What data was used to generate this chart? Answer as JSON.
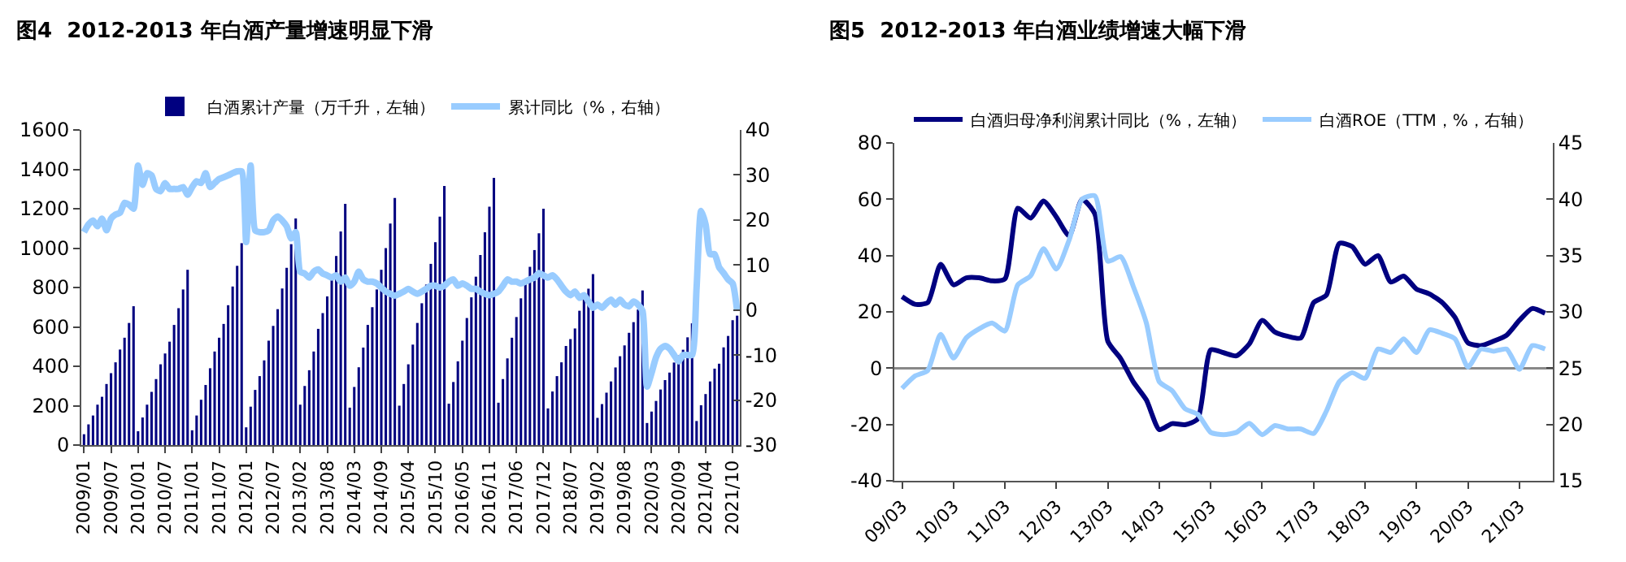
{
  "chart_data": [
    {
      "type": "bar",
      "title": "图4  2012-2013 年白酒产量增速明显下滑",
      "legend": "top",
      "ylim": [
        0,
        1600
      ],
      "yticks": [
        0,
        200,
        400,
        600,
        800,
        1000,
        1200,
        1400,
        1600
      ],
      "y2lim": [
        -30,
        40
      ],
      "y2ticks": [
        -30,
        -20,
        -10,
        0,
        10,
        20,
        30,
        40
      ],
      "categories": [
        "2009/01",
        null,
        null,
        null,
        null,
        null,
        "2009/07",
        null,
        null,
        null,
        null,
        null,
        "2010/01",
        null,
        null,
        null,
        null,
        null,
        "2010/07",
        null,
        null,
        null,
        null,
        null,
        "2011/01",
        null,
        null,
        null,
        null,
        null,
        "2011/07",
        null,
        null,
        null,
        null,
        null,
        "2012/01",
        null,
        null,
        null,
        null,
        null,
        "2012/07",
        null,
        null,
        null,
        null,
        null,
        "2013/02",
        null,
        null,
        null,
        null,
        null,
        "2013/08",
        null,
        null,
        null,
        null,
        null,
        "2014/03",
        null,
        null,
        null,
        null,
        null,
        "2014/09",
        null,
        null,
        null,
        null,
        null,
        "2015/04",
        null,
        null,
        null,
        null,
        null,
        "2015/10",
        null,
        null,
        null,
        null,
        null,
        "2016/05",
        null,
        null,
        null,
        null,
        null,
        "2016/11",
        null,
        null,
        null,
        null,
        null,
        "2017/06",
        null,
        null,
        null,
        null,
        null,
        "2017/12",
        null,
        null,
        null,
        null,
        null,
        "2018/07",
        null,
        null,
        null,
        null,
        null,
        "2019/02",
        null,
        null,
        null,
        null,
        null,
        "2019/08",
        null,
        null,
        null,
        null,
        null,
        "2020/03",
        null,
        null,
        null,
        null,
        null,
        "2020/09",
        null,
        null,
        null,
        null,
        null,
        "2021/04",
        null,
        null,
        null,
        null,
        null,
        "2021/10",
        null
      ],
      "series": [
        {
          "name": "白酒累计产量（万千升，左轴）",
          "color": "#000080",
          "values": [
            55,
            105,
            150,
            205,
            245,
            310,
            365,
            420,
            485,
            545,
            620,
            705,
            70,
            140,
            205,
            270,
            335,
            410,
            465,
            525,
            610,
            695,
            790,
            890,
            75,
            150,
            230,
            305,
            390,
            475,
            545,
            615,
            710,
            805,
            910,
            1025,
            90,
            195,
            280,
            350,
            430,
            530,
            605,
            690,
            795,
            900,
            1020,
            1150,
            205,
            300,
            380,
            475,
            590,
            670,
            755,
            855,
            960,
            1085,
            1225,
            190,
            295,
            395,
            495,
            610,
            700,
            790,
            890,
            1000,
            1125,
            1255,
            200,
            310,
            410,
            510,
            620,
            720,
            815,
            920,
            1030,
            1160,
            1315,
            210,
            320,
            425,
            530,
            645,
            750,
            855,
            965,
            1080,
            1210,
            1357,
            215,
            335,
            440,
            545,
            650,
            745,
            820,
            905,
            990,
            1075,
            1200,
            186,
            272,
            350,
            420,
            503,
            538,
            592,
            682,
            739,
            794,
            868,
            138,
            208,
            266,
            323,
            394,
            451,
            506,
            570,
            624,
            688,
            785,
            112,
            170,
            224,
            282,
            330,
            368,
            419,
            455,
            484,
            547,
            618,
            122,
            202,
            259,
            323,
            388,
            413,
            496,
            554,
            634,
            657
          ]
        },
        {
          "name": "累计同比（%，右轴）",
          "type": "line",
          "axis": "y2",
          "color": "#99ccff",
          "values": [
            17.3,
            19,
            19.9,
            18.6,
            20.3,
            17.7,
            20.3,
            21.2,
            21.6,
            23.8,
            23.4,
            22.5,
            32.1,
            27.8,
            30.4,
            29.9,
            26.9,
            26.4,
            28.2,
            26.9,
            26.9,
            26.9,
            27.3,
            25.6,
            27.3,
            28.6,
            28.2,
            30.4,
            27.3,
            28.2,
            29.1,
            29.5,
            29.9,
            30.4,
            30.8,
            30.8,
            15.1,
            32.1,
            17.7,
            17.3,
            17.3,
            17.7,
            19.9,
            20.8,
            19.9,
            18.6,
            15.9,
            17.3,
            8.5,
            8.1,
            7.2,
            8.5,
            9.0,
            8.1,
            7.7,
            7.2,
            7.7,
            6.3,
            7.2,
            5.4,
            6.3,
            8.5,
            6.8,
            6.3,
            6.3,
            5.9,
            5.0,
            4.1,
            3.6,
            3.2,
            3.6,
            4.1,
            4.7,
            4.1,
            3.6,
            4.1,
            4.7,
            5.4,
            5.4,
            5.0,
            5.4,
            6.3,
            6.8,
            5.4,
            5.9,
            5.4,
            4.7,
            4.7,
            4.1,
            3.6,
            3.3,
            3.6,
            4.1,
            5.4,
            6.8,
            6.3,
            6.3,
            5.9,
            6.3,
            6.8,
            7.2,
            8.2,
            7.7,
            7.2,
            7.7,
            6.8,
            5.4,
            4.1,
            3.3,
            4.1,
            2.7,
            3.3,
            1.9,
            0.5,
            1.2,
            0.5,
            1.5,
            2.3,
            1.2,
            2.3,
            1.2,
            0.8,
            1.9,
            1.2,
            -0.2,
            -17,
            -14,
            -10.5,
            -8.6,
            -8,
            -8.6,
            -10,
            -11.4,
            -10,
            -10,
            -10,
            5,
            22,
            19,
            12.4,
            12.4,
            9.5,
            8.2,
            6.8,
            5.9,
            -0.2
          ]
        }
      ]
    },
    {
      "type": "line",
      "title": "图5  2012-2013 年白酒业绩增速大幅下滑",
      "legend": "top",
      "ylim": [
        -40,
        80
      ],
      "yticks": [
        -40,
        -20,
        0,
        20,
        40,
        60,
        80
      ],
      "y2lim": [
        15,
        45
      ],
      "y2ticks": [
        15,
        20,
        25,
        30,
        35,
        40,
        45
      ],
      "categories": [
        "09/03",
        null,
        null,
        null,
        "10/03",
        null,
        null,
        null,
        "11/03",
        null,
        null,
        null,
        "12/03",
        null,
        null,
        null,
        "13/03",
        null,
        null,
        null,
        "14/03",
        null,
        null,
        null,
        "15/03",
        null,
        null,
        null,
        "16/03",
        null,
        null,
        null,
        "17/03",
        null,
        null,
        null,
        "18/03",
        null,
        null,
        null,
        "19/03",
        null,
        null,
        null,
        "20/03",
        null,
        null,
        null,
        "21/03",
        null,
        null
      ],
      "series": [
        {
          "name": "白酒归母净利润累计同比（%，左轴）",
          "color": "#000080",
          "values": [
            25.4,
            22.7,
            23.3,
            36.9,
            29.6,
            32.1,
            32.1,
            31,
            31.7,
            56.8,
            53.3,
            59.4,
            53.7,
            47,
            60,
            54.7,
            9.6,
            3.4,
            -5,
            -11.3,
            -21.8,
            -19.7,
            -20.1,
            -18,
            6.5,
            5.5,
            4.4,
            8.6,
            17,
            12.8,
            11.3,
            10.7,
            23.3,
            26,
            44.3,
            43.2,
            36.9,
            40,
            30.6,
            32.7,
            28.1,
            26.4,
            23.3,
            18,
            9,
            8,
            9.6,
            11.7,
            17,
            21.2,
            19.5
          ]
        },
        {
          "name": "白酒ROE（TTM，%，右轴）",
          "axis": "y2",
          "color": "#99ccff",
          "values": [
            23.2,
            24.3,
            24.8,
            28,
            25.9,
            27.7,
            28.5,
            29,
            28.3,
            32.4,
            33.2,
            35.6,
            33.8,
            36.4,
            40,
            40.3,
            34.5,
            34.9,
            32.2,
            29,
            23.8,
            23,
            21.4,
            20.9,
            19.3,
            19.1,
            19.3,
            20.1,
            19.1,
            19.9,
            19.6,
            19.6,
            19.2,
            21.2,
            23.8,
            24.6,
            24.1,
            26.7,
            26.4,
            27.6,
            26.4,
            28.4,
            28.1,
            27.6,
            25.1,
            26.7,
            26.5,
            26.7,
            24.9,
            27,
            26.7
          ]
        }
      ]
    }
  ]
}
